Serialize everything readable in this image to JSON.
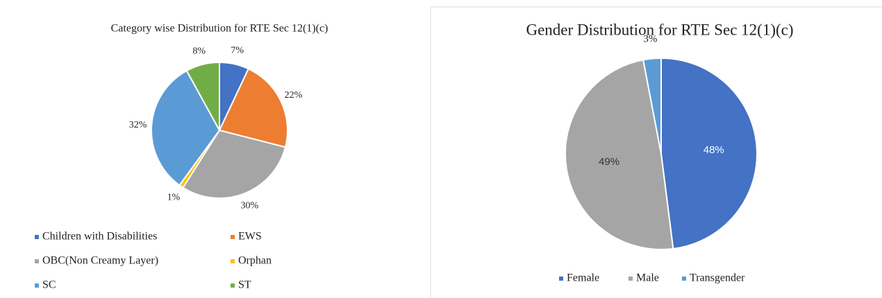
{
  "chart_data": [
    {
      "type": "pie",
      "title": "Category wise Distribution for RTE Sec 12(1)(c)",
      "categories": [
        "Children with Disabilities",
        "EWS",
        "OBC(Non Creamy Layer)",
        "Orphan",
        "SC",
        "ST"
      ],
      "values": [
        7,
        22,
        30,
        1,
        32,
        8
      ],
      "value_labels": [
        "7%",
        "22%",
        "30%",
        "1%",
        "32%",
        "8%"
      ],
      "colors": [
        "#4472c4",
        "#ed7d31",
        "#a5a5a5",
        "#ffc000",
        "#5b9bd5",
        "#70ad47"
      ],
      "legend": "bottom"
    },
    {
      "type": "pie",
      "title": "Gender Distribution for RTE Sec 12(1)(c)",
      "categories": [
        "Female",
        "Male",
        "Transgender"
      ],
      "values": [
        48,
        49,
        3
      ],
      "value_labels": [
        "48%",
        "49%",
        "3%"
      ],
      "colors": [
        "#4472c4",
        "#a5a5a5",
        "#5b9bd5"
      ],
      "legend": "bottom"
    }
  ]
}
